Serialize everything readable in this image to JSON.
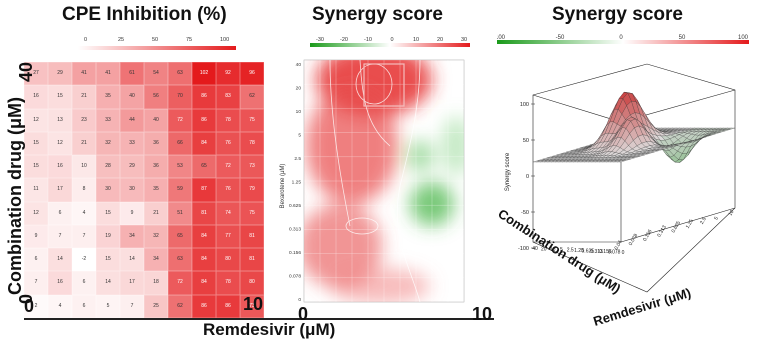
{
  "chart_data": [
    {
      "type": "heatmap",
      "title": "CPE Inhibition (%)",
      "xlabel": "Remdesivir (μM)",
      "ylabel": "Combination drug (μM)",
      "x_range_labels": [
        "0",
        "10"
      ],
      "y_range_labels": [
        "0",
        "40"
      ],
      "colorbar_ticks": [
        "0",
        "25",
        "50",
        "75",
        "100"
      ],
      "colorbar_colors": [
        "#ffffff",
        "#e41a1c"
      ],
      "grid_rows_top_to_bottom": [
        [
          27,
          29,
          41,
          41,
          61,
          54,
          63,
          102,
          92,
          96
        ],
        [
          16,
          15,
          21,
          35,
          40,
          56,
          70,
          86,
          83,
          62
        ],
        [
          12,
          13,
          23,
          33,
          44,
          40,
          72,
          86,
          78,
          75
        ],
        [
          15,
          12,
          21,
          32,
          33,
          36,
          66,
          84,
          76,
          78
        ],
        [
          15,
          16,
          10,
          28,
          29,
          36,
          53,
          65,
          72,
          73
        ],
        [
          11,
          17,
          8,
          30,
          30,
          35,
          59,
          87,
          76,
          79
        ],
        [
          12,
          6,
          4,
          15,
          9,
          21,
          51,
          81,
          74,
          75
        ],
        [
          9,
          7,
          7,
          19,
          34,
          32,
          65,
          84,
          77,
          81
        ],
        [
          6,
          14,
          -2,
          15,
          14,
          34,
          63,
          84,
          80,
          81
        ],
        [
          7,
          16,
          6,
          14,
          17,
          18,
          72,
          84,
          78,
          80
        ],
        [
          2,
          4,
          6,
          5,
          7,
          25,
          62,
          86,
          86,
          73
        ]
      ]
    },
    {
      "type": "heatmap",
      "title": "Synergy score",
      "xlabel": "Remdesivir (μM)",
      "ylabel": "Bexarotene (μM)",
      "x_range_labels": [
        "0",
        "10"
      ],
      "colorbar_ticks": [
        "-30",
        "-20",
        "-10",
        "0",
        "10",
        "20",
        "30"
      ],
      "colorbar_colors": [
        "#1a9a1a",
        "#ffffff",
        "#e41a1c"
      ],
      "y_tick_labels": [
        "40",
        "20",
        "10",
        "5",
        "2.5",
        "1.25",
        "0.625",
        "0.313",
        "0.156",
        "0.078",
        "0"
      ]
    },
    {
      "type": "surface",
      "title": "Synergy score",
      "zlabel": "Synergy score",
      "xlabel": "Remdesivir (μM)",
      "ylabel": "Combination drug (μM)",
      "colorbar_ticks": [
        "-100",
        "-50",
        "0",
        "50",
        "100"
      ],
      "colorbar_colors": [
        "#1a9a1a",
        "#ffffff",
        "#e41a1c"
      ],
      "z_ticks": [
        "100",
        "50",
        "0",
        "-50",
        "-100"
      ],
      "x_ticks": [
        "0.04",
        "0.078",
        "0.156",
        "0.313",
        "0.625",
        "1.25",
        "2.5",
        "5",
        "10"
      ],
      "y_ticks": [
        "40",
        "20",
        "10",
        "5",
        "2.5",
        "1.25",
        "0.625",
        "0.313",
        "0.156",
        "0.078",
        "0"
      ]
    }
  ],
  "colors": {
    "red": "#e41a1c",
    "green": "#1a9a1a",
    "axis": "#222222"
  }
}
